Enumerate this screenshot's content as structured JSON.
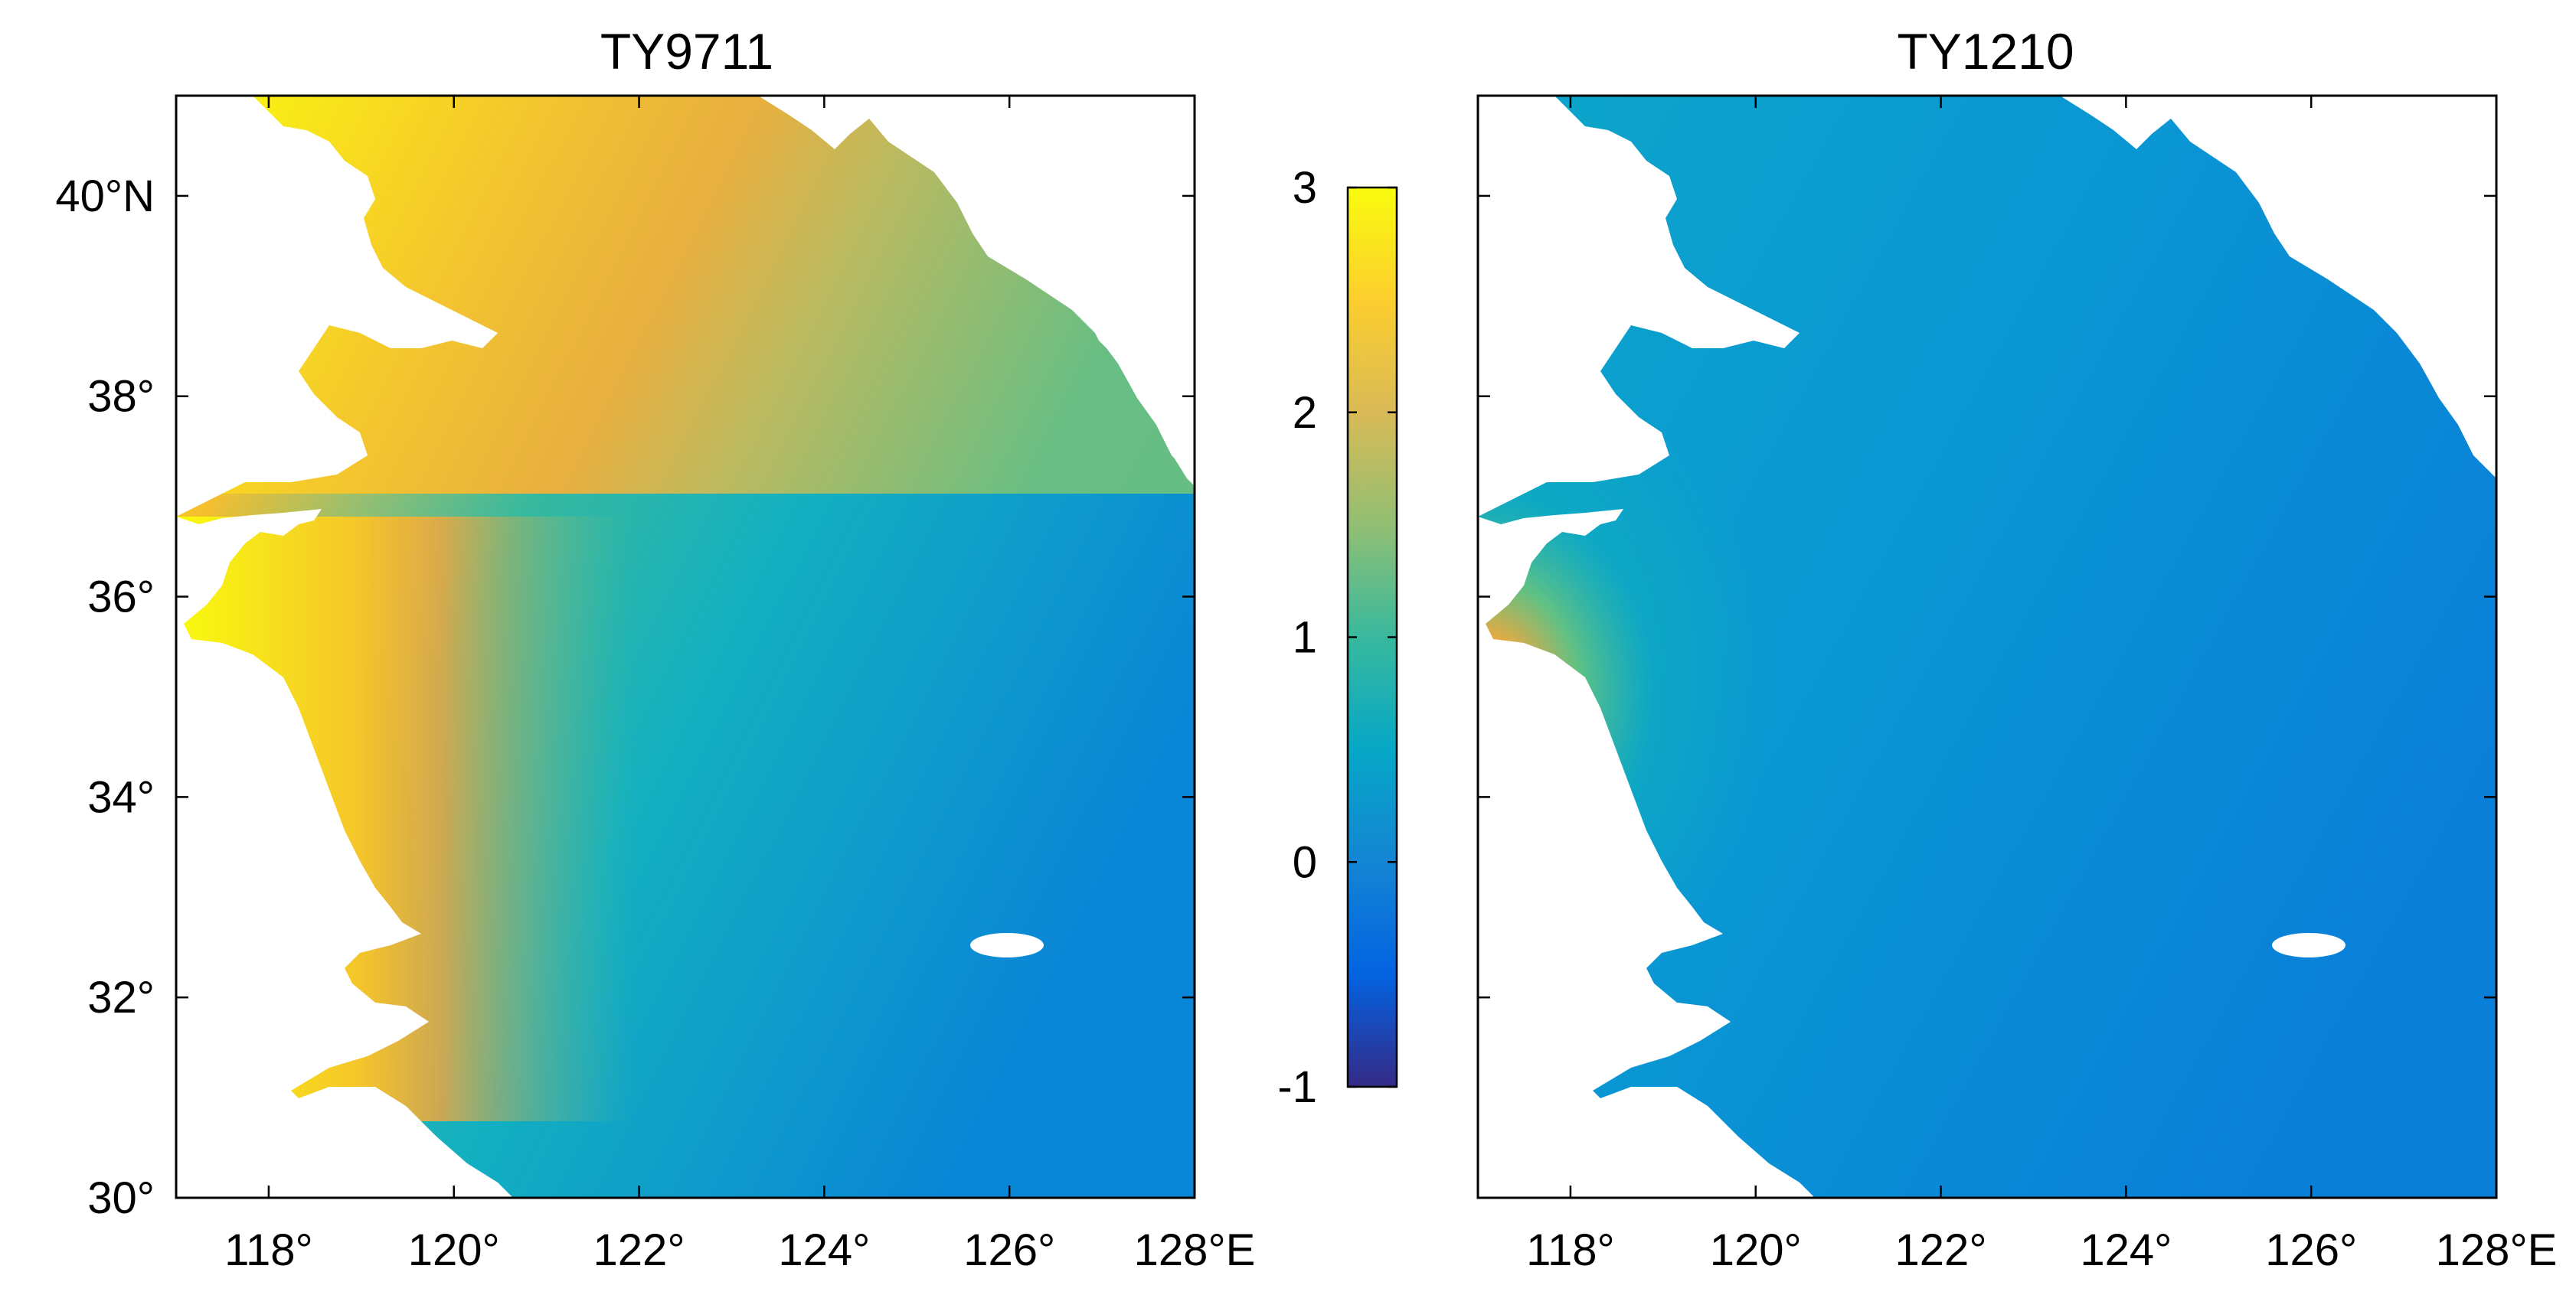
{
  "figure": {
    "colorbar": {
      "min": -1,
      "max": 3,
      "ticks": [
        "3",
        "2",
        "1",
        "0",
        "-1"
      ],
      "colormap": "parula",
      "stops": [
        "#352a87",
        "#0363e1",
        "#1485d4",
        "#06a7c6",
        "#38b99e",
        "#92bf73",
        "#d9ba56",
        "#fcce2e",
        "#f9fb0e"
      ]
    },
    "panels": [
      {
        "title": "TY9711",
        "lon_range": [
          117,
          128
        ],
        "lat_range": [
          30,
          41
        ],
        "x_ticks": [
          "118°",
          "120°",
          "122°",
          "124°",
          "126°",
          "128°E"
        ],
        "y_ticks": [
          "40°N",
          "38°",
          "36°",
          "34°",
          "32°",
          "30°"
        ],
        "value_range_shown": [
          0.2,
          3.0
        ]
      },
      {
        "title": "TY1210",
        "lon_range": [
          117,
          128
        ],
        "lat_range": [
          30,
          41
        ],
        "x_ticks": [
          "118°",
          "120°",
          "122°",
          "124°",
          "126°",
          "128°E"
        ],
        "y_ticks": [],
        "value_range_shown": [
          0.3,
          2.2
        ]
      }
    ]
  }
}
